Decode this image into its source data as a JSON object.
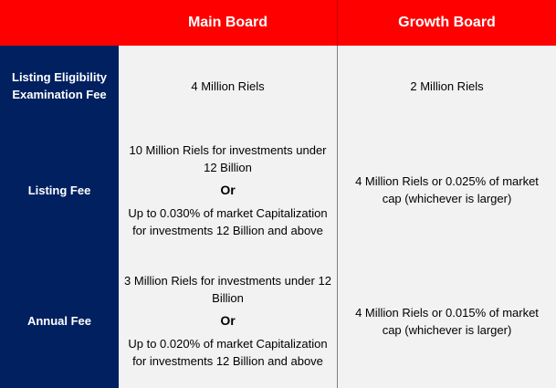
{
  "header": {
    "corner": "",
    "main_board": "Main Board",
    "growth_board": "Growth Board"
  },
  "rows": [
    {
      "label": "Listing Eligibility Examination Fee",
      "main_board": "4 Million Riels",
      "growth_board": "2 Million Riels"
    },
    {
      "label": "Listing Fee",
      "main_board_option_1": "10 Million Riels for investments under 12 Billion",
      "or": "Or",
      "main_board_option_2": "Up to 0.030% of market Capitalization for investments 12 Billion and above",
      "growth_board": "4 Million Riels or 0.025% of market cap (whichever is larger)"
    },
    {
      "label": "Annual Fee",
      "main_board_option_1": "3 Million Riels for investments under 12 Billion",
      "or": "Or",
      "main_board_option_2": "Up to 0.020% of market Capitalization for investments 12 Billion and above",
      "growth_board": "4 Million Riels or 0.015% of market cap (whichever is larger)"
    }
  ],
  "colors": {
    "header_bg": "#ff0000",
    "row_label_bg": "#002060",
    "body_bg": "#f2f2f2"
  }
}
